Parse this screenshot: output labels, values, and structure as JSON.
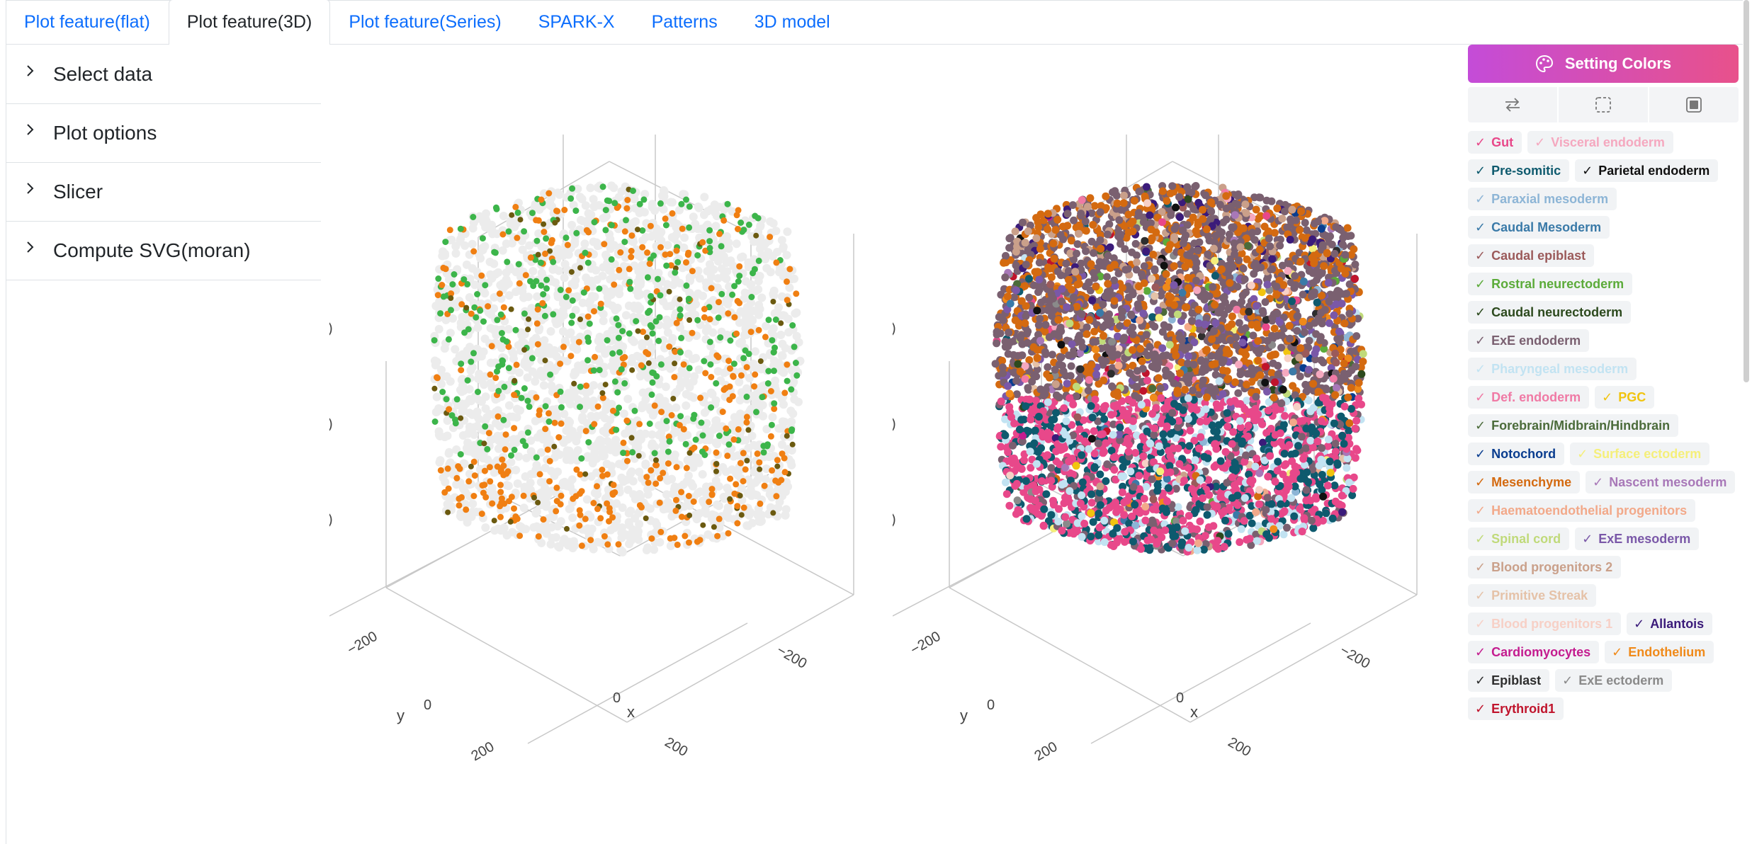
{
  "tabs": [
    {
      "label": "Plot feature(flat)",
      "active": false
    },
    {
      "label": "Plot feature(3D)",
      "active": true
    },
    {
      "label": "Plot feature(Series)",
      "active": false
    },
    {
      "label": "SPARK-X",
      "active": false
    },
    {
      "label": "Patterns",
      "active": false
    },
    {
      "label": "3D model",
      "active": false
    }
  ],
  "sidebar": {
    "items": [
      {
        "label": "Select data"
      },
      {
        "label": "Plot options"
      },
      {
        "label": "Slicer"
      },
      {
        "label": "Compute SVG(moran)"
      }
    ]
  },
  "plots": {
    "axis_labels": {
      "x": "x",
      "y": "y"
    },
    "ticks": {
      "neg": "−200",
      "zero": "0",
      "pos": "200"
    }
  },
  "panel": {
    "setting_label": "Setting Colors",
    "icons": [
      "swap-icon",
      "select-box-icon",
      "fill-box-icon"
    ]
  },
  "legend": [
    {
      "label": "Gut",
      "color": "#e8488a"
    },
    {
      "label": "Visceral endoderm",
      "color": "#f5a8bf"
    },
    {
      "label": "Pre-somitic",
      "color": "#0e5a6e"
    },
    {
      "label": "Parietal endoderm",
      "color": "#111111"
    },
    {
      "label": "Paraxial mesoderm",
      "color": "#8db5d6"
    },
    {
      "label": "Caudal Mesoderm",
      "color": "#3a7aa8"
    },
    {
      "label": "Caudal epiblast",
      "color": "#9b5a5a"
    },
    {
      "label": "Rostral neurectoderm",
      "color": "#5cab3a"
    },
    {
      "label": "Caudal neurectoderm",
      "color": "#2d4a1e"
    },
    {
      "label": "ExE endoderm",
      "color": "#7a6070"
    },
    {
      "label": "Pharyngeal mesoderm",
      "color": "#c2e3f2"
    },
    {
      "label": "Def. endoderm",
      "color": "#f07aa5"
    },
    {
      "label": "PGC",
      "color": "#f1c40f"
    },
    {
      "label": "Forebrain/Midbrain/Hindbrain",
      "color": "#4b6b3a"
    },
    {
      "label": "Notochord",
      "color": "#0a3d8f"
    },
    {
      "label": "Surface ectoderm",
      "color": "#f5ef7a"
    },
    {
      "label": "Mesenchyme",
      "color": "#d46a10"
    },
    {
      "label": "Nascent mesoderm",
      "color": "#a878b8"
    },
    {
      "label": "Haematoendothelial progenitors",
      "color": "#f2a98a"
    },
    {
      "label": "Spinal cord",
      "color": "#c0da7a"
    },
    {
      "label": "ExE mesoderm",
      "color": "#7a58a8"
    },
    {
      "label": "Blood progenitors 2",
      "color": "#caa08a"
    },
    {
      "label": "Primitive Streak",
      "color": "#e5c2a8"
    },
    {
      "label": "Blood progenitors 1",
      "color": "#f7d0c6"
    },
    {
      "label": "Allantois",
      "color": "#3b1b7a"
    },
    {
      "label": "Cardiomyocytes",
      "color": "#c41c8f"
    },
    {
      "label": "Endothelium",
      "color": "#f08a1a"
    },
    {
      "label": "Epiblast",
      "color": "#2e2e2e"
    },
    {
      "label": "ExE ectoderm",
      "color": "#8a8a8a"
    },
    {
      "label": "Erythroid1",
      "color": "#c0142c"
    }
  ],
  "colors": {
    "background_cell": "#ececec",
    "feature_green": "#3cb54a",
    "feature_orange": "#f07f12",
    "feature_dark": "#6b5a10"
  }
}
